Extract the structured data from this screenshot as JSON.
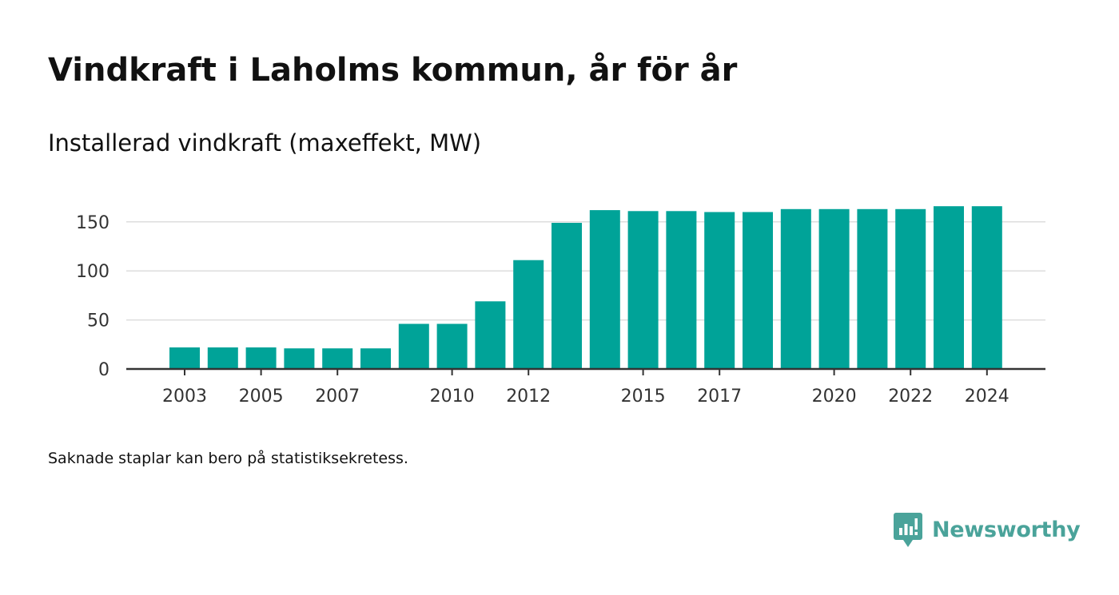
{
  "title": "Vindkraft i Laholms kommun, år för år",
  "subtitle": "Installerad vindkraft (maxeffekt, MW)",
  "footnote": "Saknade staplar kan bero på statistiksekretess.",
  "brand": {
    "name": "Newsworthy",
    "icon": "newsworthy-logo-icon",
    "color": "#4aa39a"
  },
  "colors": {
    "bar": "#00a398",
    "grid": "#dddddd",
    "axis": "#333333"
  },
  "chart_data": {
    "type": "bar",
    "categories": [
      "2003",
      "2004",
      "2005",
      "2006",
      "2007",
      "2008",
      "2009",
      "2010",
      "2011",
      "2012",
      "2013",
      "2014",
      "2015",
      "2016",
      "2017",
      "2018",
      "2019",
      "2020",
      "2021",
      "2022",
      "2023",
      "2024"
    ],
    "values": [
      22,
      22,
      22,
      21,
      21,
      21,
      46,
      46,
      69,
      111,
      149,
      162,
      161,
      161,
      160,
      160,
      163,
      163,
      163,
      163,
      166,
      166
    ],
    "x_tick_labels": [
      "2003",
      "2005",
      "2007",
      "2010",
      "2012",
      "2015",
      "2017",
      "2020",
      "2022",
      "2024"
    ],
    "y_ticks": [
      0,
      50,
      100,
      150
    ],
    "ylim": [
      0,
      170
    ],
    "xlabel": "",
    "ylabel": "",
    "grid": true,
    "legend": "none"
  }
}
